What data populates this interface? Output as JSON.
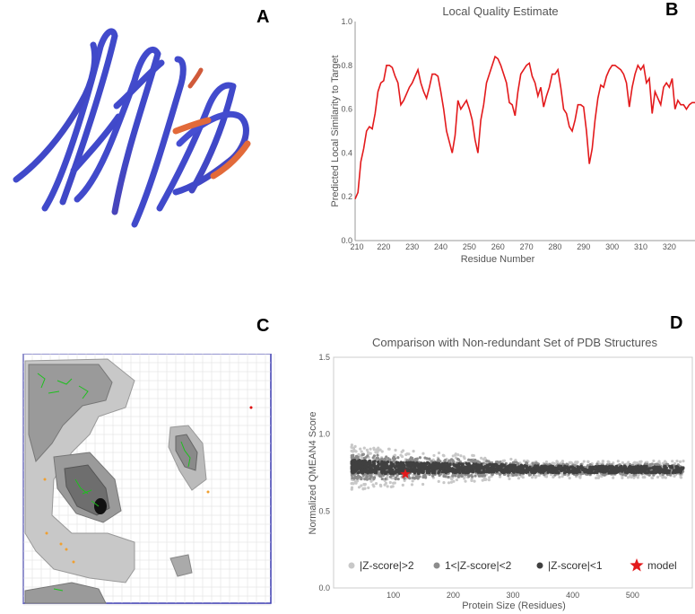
{
  "panels": {
    "a": "A",
    "b": "B",
    "c": "C",
    "d": "D"
  },
  "chart_data": [
    {
      "panel": "B",
      "type": "line",
      "title": "Local Quality Estimate",
      "xlabel": "Residue Number",
      "ylabel": "Predicted Local Similarity to Target",
      "xlim": [
        210,
        329
      ],
      "ylim": [
        0.0,
        1.0
      ],
      "xticks": [
        210,
        220,
        230,
        240,
        250,
        260,
        270,
        280,
        290,
        300,
        310,
        320
      ],
      "yticks": [
        0.0,
        0.2,
        0.4,
        0.6,
        0.8,
        1.0
      ],
      "tick_labels_y": [
        "0.0",
        "0.2",
        "0.4",
        "0.6",
        "0.8",
        "1.0"
      ],
      "color": "#e31a1c",
      "x": [
        210,
        211,
        212,
        213,
        214,
        215,
        216,
        217,
        218,
        219,
        220,
        221,
        222,
        223,
        224,
        225,
        226,
        227,
        228,
        229,
        230,
        231,
        232,
        233,
        234,
        235,
        236,
        237,
        238,
        239,
        240,
        241,
        242,
        243,
        244,
        245,
        246,
        247,
        248,
        249,
        250,
        251,
        252,
        253,
        254,
        255,
        256,
        257,
        258,
        259,
        260,
        261,
        262,
        263,
        264,
        265,
        266,
        267,
        268,
        269,
        270,
        271,
        272,
        273,
        274,
        275,
        276,
        277,
        278,
        279,
        280,
        281,
        282,
        283,
        284,
        285,
        286,
        287,
        288,
        289,
        290,
        291,
        292,
        293,
        294,
        295,
        296,
        297,
        298,
        299,
        300,
        301,
        302,
        303,
        304,
        305,
        306,
        307,
        308,
        309,
        310,
        311,
        312,
        313,
        314,
        315,
        316,
        317,
        318,
        319,
        320,
        321,
        322,
        323,
        324,
        325,
        326,
        327,
        328,
        329
      ],
      "y": [
        0.19,
        0.22,
        0.36,
        0.42,
        0.5,
        0.52,
        0.51,
        0.58,
        0.68,
        0.72,
        0.73,
        0.8,
        0.8,
        0.79,
        0.75,
        0.72,
        0.62,
        0.64,
        0.67,
        0.7,
        0.72,
        0.75,
        0.78,
        0.72,
        0.68,
        0.65,
        0.7,
        0.76,
        0.76,
        0.75,
        0.68,
        0.6,
        0.5,
        0.45,
        0.4,
        0.48,
        0.64,
        0.6,
        0.62,
        0.64,
        0.6,
        0.55,
        0.46,
        0.4,
        0.55,
        0.62,
        0.72,
        0.76,
        0.8,
        0.84,
        0.83,
        0.8,
        0.76,
        0.72,
        0.63,
        0.62,
        0.57,
        0.68,
        0.76,
        0.78,
        0.8,
        0.81,
        0.75,
        0.72,
        0.66,
        0.7,
        0.61,
        0.66,
        0.7,
        0.76,
        0.76,
        0.78,
        0.7,
        0.6,
        0.58,
        0.52,
        0.5,
        0.55,
        0.62,
        0.62,
        0.61,
        0.5,
        0.35,
        0.42,
        0.55,
        0.65,
        0.71,
        0.7,
        0.75,
        0.78,
        0.8,
        0.8,
        0.79,
        0.78,
        0.76,
        0.72,
        0.61,
        0.7,
        0.76,
        0.8,
        0.78,
        0.8,
        0.72,
        0.74,
        0.58,
        0.68,
        0.65,
        0.62,
        0.7,
        0.72,
        0.7,
        0.74,
        0.6,
        0.64,
        0.62,
        0.62,
        0.6,
        0.62,
        0.63,
        0.63
      ]
    },
    {
      "panel": "D",
      "type": "scatter",
      "title": "Comparison with Non-redundant Set of PDB Structures",
      "xlabel": "Protein Size (Residues)",
      "ylabel": "Normalized QMEAN4 Score",
      "xlim": [
        0,
        600
      ],
      "ylim": [
        0.0,
        1.5
      ],
      "xticks": [
        100,
        200,
        300,
        400,
        500
      ],
      "yticks": [
        0.0,
        0.5,
        1.0,
        1.5
      ],
      "tick_labels_y": [
        "0.0",
        "0.5",
        "1.0",
        "1.5"
      ],
      "band_trend": [
        [
          30,
          0.79
        ],
        [
          100,
          0.78
        ],
        [
          200,
          0.78
        ],
        [
          300,
          0.775
        ],
        [
          400,
          0.77
        ],
        [
          500,
          0.77
        ],
        [
          585,
          0.77
        ]
      ],
      "model": {
        "x": 120,
        "y": 0.74,
        "color": "#e31a1c"
      },
      "legend": [
        {
          "label": "|Z-score|>2",
          "color": "#c8c8c8"
        },
        {
          "label": "1<|Z-score|<2",
          "color": "#8c8c8c"
        },
        {
          "label": "|Z-score|<1",
          "color": "#404040"
        },
        {
          "label": "model",
          "color": "#e31a1c"
        }
      ]
    }
  ]
}
